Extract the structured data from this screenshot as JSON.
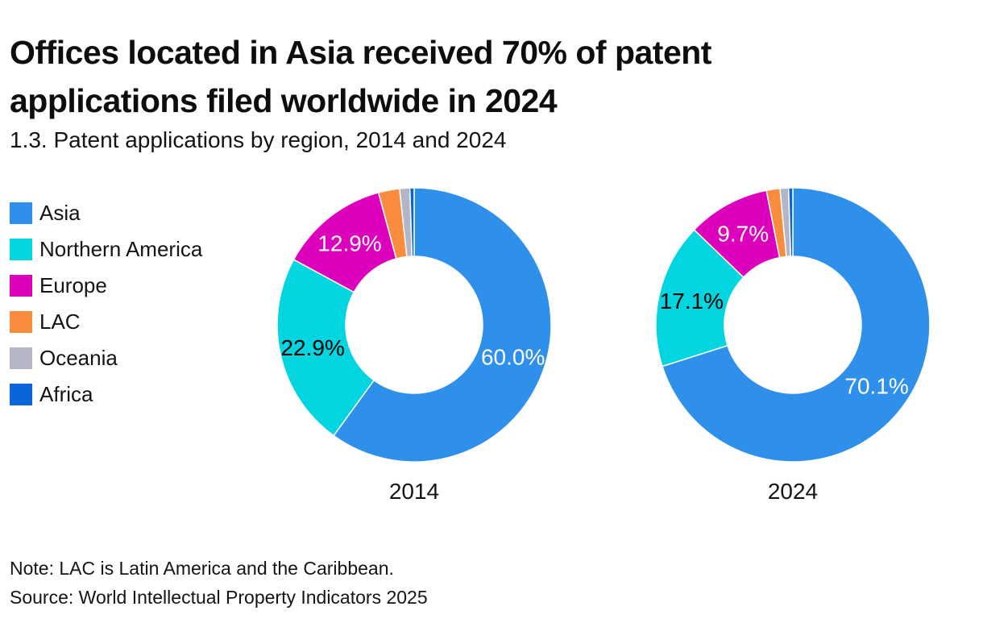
{
  "header": {
    "title": "Offices located in Asia received 70% of patent applications filed worldwide in 2024",
    "subtitle": "1.3. Patent applications by region, 2014 and 2024"
  },
  "footer": {
    "note": "Note: LAC is Latin America and the Caribbean.",
    "source": "Source: World Intellectual Property Indicators 2025"
  },
  "chart_data": {
    "type": "pie",
    "subtype": "donut",
    "title": "1.3. Patent applications by region, 2014 and 2024",
    "legend_position": "left",
    "donut_hole_ratio": 0.5,
    "start_angle_deg": 0,
    "direction": "clockwise",
    "background_color": "#ffffff",
    "categories": [
      "Asia",
      "Northern America",
      "Europe",
      "LAC",
      "Oceania",
      "Africa"
    ],
    "colors": [
      "#2e90ea",
      "#00d5e0",
      "#dc00bc",
      "#fa8c3e",
      "#b4b5c6",
      "#0a64da"
    ],
    "charts": [
      {
        "label": "2014",
        "values": [
          60.0,
          22.9,
          12.9,
          2.5,
          1.2,
          0.5
        ],
        "data_labels": [
          "60.0%",
          "22.9%",
          "12.9%",
          "",
          "",
          ""
        ],
        "label_colors": [
          "#ffffff",
          "#000000",
          "#ffffff",
          "",
          "",
          ""
        ]
      },
      {
        "label": "2024",
        "values": [
          70.1,
          17.1,
          9.7,
          1.6,
          1.0,
          0.5
        ],
        "data_labels": [
          "70.1%",
          "17.1%",
          "9.7%",
          "",
          "",
          ""
        ],
        "label_colors": [
          "#ffffff",
          "#000000",
          "#ffffff",
          "",
          "",
          ""
        ]
      }
    ]
  }
}
